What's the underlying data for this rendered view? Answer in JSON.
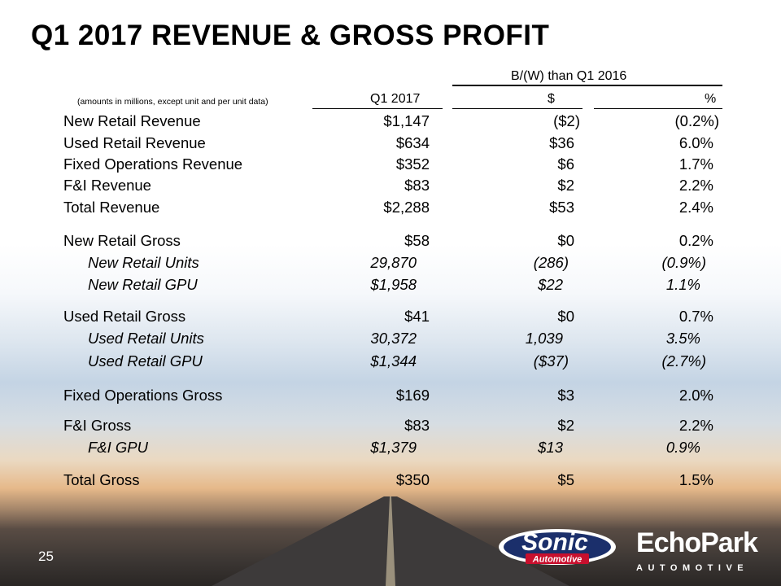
{
  "title": "Q1 2017 REVENUE & GROSS PROFIT",
  "table": {
    "note": "(amounts in millions, except unit and per unit data)",
    "group_header": "B/(W) than Q1 2016",
    "col_q1": "Q1 2017",
    "col_dollar": "$",
    "col_pct": "%",
    "rows": [
      {
        "label": "New Retail Revenue",
        "q1": "$1,147",
        "dollar": "($2)",
        "pct": "(0.2%)"
      },
      {
        "label": "Used Retail Revenue",
        "q1": "$634",
        "dollar": "$36",
        "pct": "6.0%"
      },
      {
        "label": "Fixed Operations Revenue",
        "q1": "$352",
        "dollar": "$6",
        "pct": "1.7%"
      },
      {
        "label": "F&I Revenue",
        "q1": "$83",
        "dollar": "$2",
        "pct": "2.2%"
      },
      {
        "label": "Total Revenue",
        "q1": "$2,288",
        "dollar": "$53",
        "pct": "2.4%"
      },
      {
        "label": "New Retail Gross",
        "q1": "$58",
        "dollar": "$0",
        "pct": "0.2%"
      },
      {
        "label": "New Retail Units",
        "q1": "29,870",
        "dollar": "(286)",
        "pct": "(0.9%)"
      },
      {
        "label": "New Retail GPU",
        "q1": "$1,958",
        "dollar": "$22",
        "pct": "1.1%"
      },
      {
        "label": "Used Retail Gross",
        "q1": "$41",
        "dollar": "$0",
        "pct": "0.7%"
      },
      {
        "label": "Used Retail Units",
        "q1": "30,372",
        "dollar": "1,039",
        "pct": "3.5%"
      },
      {
        "label": "Used Retail GPU",
        "q1": "$1,344",
        "dollar": "($37)",
        "pct": "(2.7%)"
      },
      {
        "label": "Fixed Operations Gross",
        "q1": "$169",
        "dollar": "$3",
        "pct": "2.0%"
      },
      {
        "label": "F&I Gross",
        "q1": "$83",
        "dollar": "$2",
        "pct": "2.2%"
      },
      {
        "label": "F&I GPU",
        "q1": "$1,379",
        "dollar": "$13",
        "pct": "0.9%"
      },
      {
        "label": "Total Gross",
        "q1": "$350",
        "dollar": "$5",
        "pct": "1.5%"
      }
    ]
  },
  "footer": {
    "page_number": "25",
    "logo_sonic_main": "Sonic",
    "logo_sonic_sub": "Automotive",
    "logo_echo_main": "EchoPark",
    "logo_echo_sub": "AUTOMOTIVE"
  }
}
